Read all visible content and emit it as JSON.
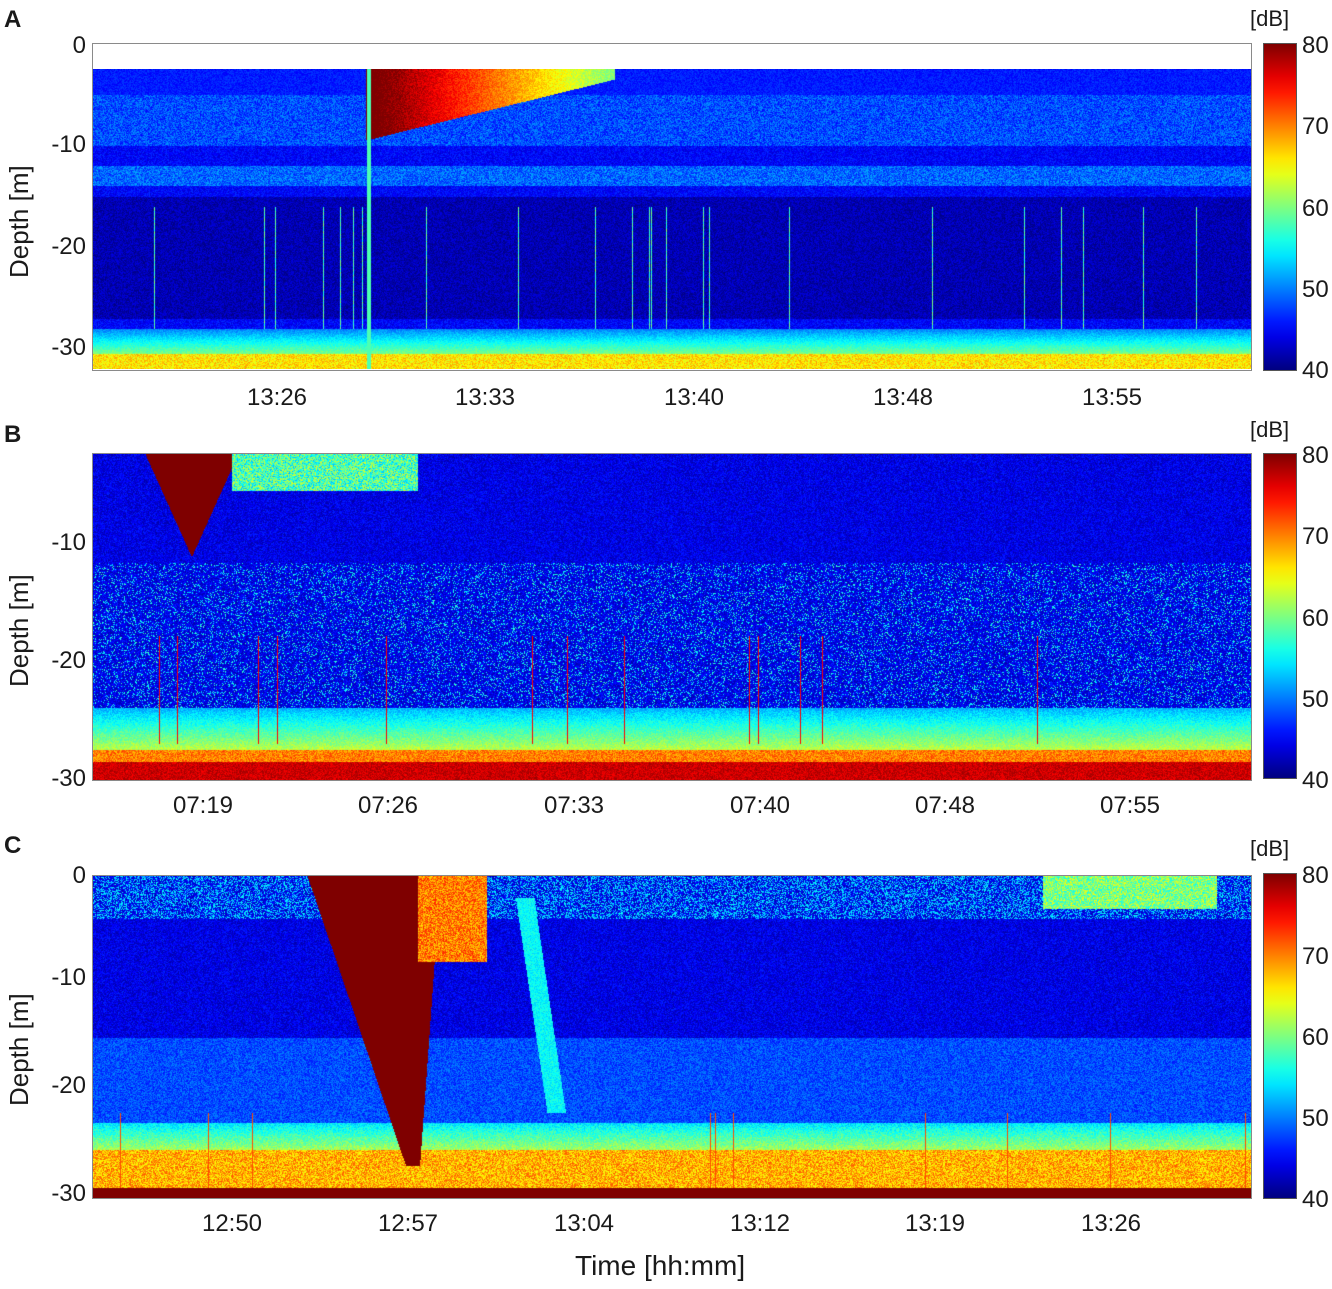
{
  "xlabel": "Time [hh:mm]",
  "colorbar": {
    "title": "[dB]",
    "ticks": [
      "80",
      "70",
      "60",
      "50",
      "40"
    ],
    "range": [
      40,
      80
    ],
    "colormap": [
      "#00007f",
      "#0000ff",
      "#007fff",
      "#00ffff",
      "#7fff7f",
      "#ffff00",
      "#ff7f00",
      "#ff0000",
      "#7f0000"
    ]
  },
  "chart_data": [
    {
      "type": "heatmap",
      "panel": "A",
      "ylabel": "Depth [m]",
      "ylim": [
        -32,
        0
      ],
      "yticks": [
        "0",
        "-10",
        "-20",
        "-30"
      ],
      "xticks": [
        "13:26",
        "13:33",
        "13:40",
        "13:48",
        "13:55"
      ],
      "colorbar_range": [
        40,
        80
      ]
    },
    {
      "type": "heatmap",
      "panel": "B",
      "ylabel": "Depth [m]",
      "ylim": [
        -30,
        -3
      ],
      "yticks": [
        "-10",
        "-20",
        "-30"
      ],
      "xticks": [
        "07:19",
        "07:26",
        "07:33",
        "07:40",
        "07:48",
        "07:55"
      ],
      "colorbar_range": [
        40,
        80
      ]
    },
    {
      "type": "heatmap",
      "panel": "C",
      "ylabel": "Depth [m]",
      "ylim": [
        -30,
        0
      ],
      "yticks": [
        "0",
        "-10",
        "-20",
        "-30"
      ],
      "xticks": [
        "12:50",
        "12:57",
        "13:04",
        "13:12",
        "13:19",
        "13:26"
      ],
      "colorbar_range": [
        40,
        80
      ]
    }
  ]
}
